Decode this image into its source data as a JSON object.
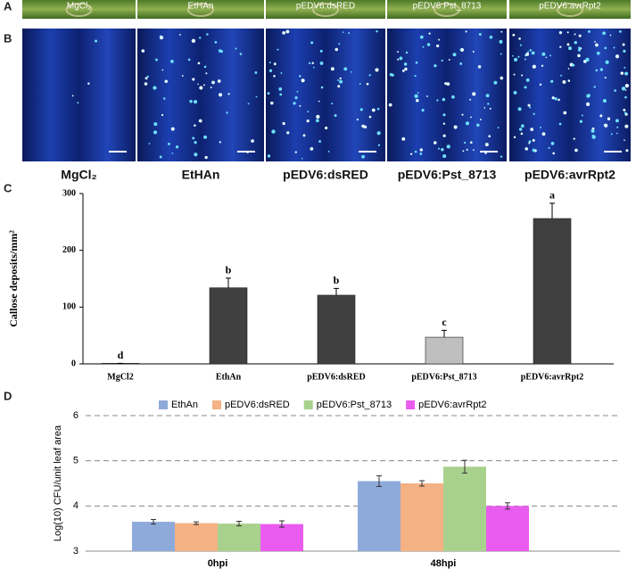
{
  "panels": {
    "A": {
      "label": "A",
      "captions": [
        "MgCl₂",
        "EtHAn",
        "pEDV6:dsRED",
        "pEDV6:Pst_8713",
        "pEDV6:avrRpt2"
      ]
    },
    "B": {
      "label": "B",
      "captions": [
        "MgCl₂",
        "EtHAn",
        "pEDV6:dsRED",
        "pEDV6:Pst_8713",
        "pEDV6:avrRpt2"
      ]
    }
  },
  "chart_data": [
    {
      "type": "bar",
      "panel_label": "C",
      "y_label": "Callose deposits/mm²",
      "categories": [
        "MgCl2",
        "EthAn",
        "pEDV6:dsRED",
        "pEDV6:Pst_8713",
        "pEDV6:avrRpt2"
      ],
      "values": [
        1,
        134,
        121,
        47,
        256
      ],
      "errors": [
        0,
        17,
        12,
        12,
        27
      ],
      "annotations": [
        "d",
        "b",
        "b",
        "c",
        "a"
      ],
      "colors": [
        "#404040",
        "#404040",
        "#404040",
        "#bfbfbf",
        "#404040"
      ],
      "ylim": [
        0,
        300
      ],
      "yticks": [
        0,
        100,
        200,
        300
      ],
      "grid": false
    },
    {
      "type": "bar",
      "panel_label": "D",
      "y_label": "Log(10) CFU/unit leaf area",
      "categories": [
        "0hpi",
        "48hpi"
      ],
      "series": [
        {
          "name": "EthAn",
          "color": "#8eaadb",
          "values": [
            3.65,
            4.55
          ],
          "errors": [
            0.05,
            0.12
          ]
        },
        {
          "name": "pEDV6:dsRED",
          "color": "#f4b183",
          "values": [
            3.62,
            4.5
          ],
          "errors": [
            0.03,
            0.06
          ]
        },
        {
          "name": "pEDV6:Pst_8713",
          "color": "#a9d18e",
          "values": [
            3.61,
            4.87
          ],
          "errors": [
            0.05,
            0.14
          ]
        },
        {
          "name": "pEDV6:avrRpt2",
          "color": "#ea5cf0",
          "values": [
            3.6,
            4.0
          ],
          "errors": [
            0.07,
            0.07
          ]
        }
      ],
      "ylim": [
        3,
        6
      ],
      "yticks": [
        3,
        4,
        5,
        6
      ],
      "grid": true,
      "legend": "top"
    }
  ]
}
